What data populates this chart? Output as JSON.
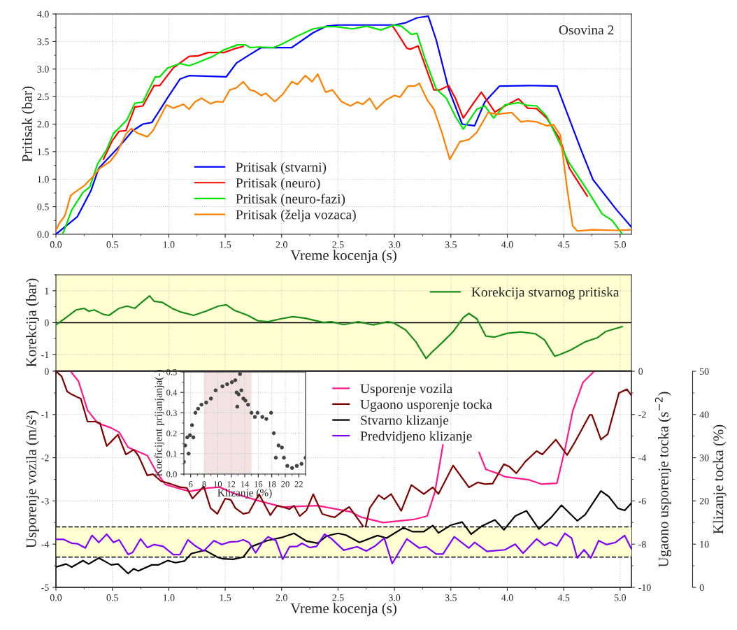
{
  "chart_data": [
    {
      "type": "line",
      "xlabel": "Vreme kocenja (s)",
      "ylabel": "Pritisak (bar)",
      "xlim": [
        0,
        5.1
      ],
      "ylim": [
        0,
        4
      ],
      "xticks": [
        {
          "value": 0,
          "label": "0.0"
        },
        {
          "value": 0.5,
          "label": "0.5"
        },
        {
          "value": 1,
          "label": "1.0"
        },
        {
          "value": 1.5,
          "label": "1.5"
        },
        {
          "value": 2,
          "label": "2.0"
        },
        {
          "value": 2.5,
          "label": "2.5"
        },
        {
          "value": 3,
          "label": "3.0"
        },
        {
          "value": 3.5,
          "label": "3.5"
        },
        {
          "value": 4,
          "label": "4.0"
        },
        {
          "value": 4.5,
          "label": "4.5"
        },
        {
          "value": 5,
          "label": "5.0"
        }
      ],
      "yticks": [
        {
          "value": 0,
          "label": "0.0"
        },
        {
          "value": 0.5,
          "label": "0.5"
        },
        {
          "value": 1,
          "label": "1.0"
        },
        {
          "value": 1.5,
          "label": "1.5"
        },
        {
          "value": 2,
          "label": "2.0"
        },
        {
          "value": 2.5,
          "label": "2.5"
        },
        {
          "value": 3,
          "label": "3.0"
        },
        {
          "value": 3.5,
          "label": "3.5"
        },
        {
          "value": 4,
          "label": "4.0"
        }
      ],
      "grid": true,
      "legend": "bottom",
      "annotations": [
        "Osovina 2"
      ],
      "series": [
        {
          "name": "Pritisak (stvarni)",
          "color": "#0000ff",
          "x": [
            0,
            0.19,
            0.31,
            0.38,
            0.56,
            0.68,
            0.77,
            0.85,
            0.91,
            0.99,
            1.1,
            1.18,
            1.51,
            1.6,
            1.7,
            1.82,
            2.09,
            2.28,
            2.4,
            2.5,
            2.7,
            2.9,
            3.0,
            3.1,
            3.2,
            3.3,
            3.37,
            3.48,
            3.6,
            3.71,
            3.8,
            3.93,
            4.2,
            4.44,
            4.51,
            4.66,
            4.76,
            4.97,
            5.1
          ],
          "values": [
            0,
            0.32,
            0.79,
            1.2,
            1.59,
            1.88,
            2.0,
            2.03,
            2.22,
            2.48,
            2.82,
            2.88,
            2.86,
            3.11,
            3.24,
            3.39,
            3.39,
            3.66,
            3.78,
            3.8,
            3.8,
            3.8,
            3.8,
            3.84,
            3.93,
            3.96,
            3.53,
            2.64,
            2.0,
            1.97,
            2.4,
            2.69,
            2.7,
            2.69,
            2.31,
            1.5,
            0.99,
            0.44,
            0.13
          ]
        },
        {
          "name": "Pritisak (neuro)",
          "color": "#ff0000",
          "x": [
            0.42,
            0.5,
            0.56,
            0.62,
            0.7,
            0.77,
            0.87,
            0.92,
            1.04,
            1.18,
            1.26,
            1.35,
            1.49,
            1.6,
            1.66,
            1.8,
            1.93,
            2.01,
            2.15,
            2.28,
            2.4,
            2.48,
            2.63,
            2.75,
            2.88,
            2.98,
            3.02,
            3.11,
            3.14,
            3.21,
            3.25,
            3.35,
            3.4,
            3.48,
            3.54,
            3.61,
            3.69,
            3.77,
            3.89,
            3.98,
            4.1,
            4.18,
            4.26,
            4.35,
            4.47,
            4.55,
            4.64,
            4.71
          ],
          "values": [
            1.36,
            1.7,
            1.87,
            1.88,
            2.31,
            2.33,
            2.7,
            2.7,
            3.02,
            3.23,
            3.24,
            3.3,
            3.3,
            3.38,
            3.41,
            null,
            null,
            null,
            null,
            null,
            null,
            null,
            null,
            null,
            null,
            3.79,
            3.67,
            3.38,
            3.36,
            3.42,
            3.19,
            2.62,
            2.62,
            2.7,
            2.47,
            2.11,
            2.35,
            2.58,
            2.22,
            2.33,
            2.46,
            2.29,
            2.28,
            2.11,
            1.71,
            1.2,
            0.91,
            0.69
          ]
        },
        {
          "name": "Pritisak (neuro-fazi)",
          "color": "#00e600",
          "x": [
            0.06,
            0.14,
            0.24,
            0.3,
            0.37,
            0.45,
            0.51,
            0.56,
            0.63,
            0.7,
            0.77,
            0.88,
            0.92,
            0.99,
            1.1,
            1.18,
            1.26,
            1.39,
            1.49,
            1.61,
            1.68,
            1.72,
            1.8,
            1.93,
            2.01,
            2.15,
            2.28,
            2.4,
            2.48,
            2.63,
            2.75,
            2.88,
            3.0,
            3.06,
            3.15,
            3.2,
            3.27,
            3.37,
            3.46,
            3.54,
            3.61,
            3.73,
            3.8,
            3.88,
            3.98,
            4.1,
            4.18,
            4.26,
            4.35,
            4.47,
            4.55,
            4.7,
            4.84,
            4.93,
            5.02
          ],
          "values": [
            0,
            0.44,
            0.76,
            0.86,
            1.28,
            1.54,
            1.83,
            1.93,
            2.08,
            2.38,
            2.4,
            2.86,
            2.86,
            3.02,
            3.1,
            3.06,
            3.12,
            3.23,
            3.35,
            3.44,
            3.44,
            3.39,
            3.4,
            3.39,
            3.46,
            3.61,
            3.73,
            3.77,
            3.77,
            3.73,
            3.78,
            3.71,
            3.8,
            3.78,
            3.63,
            3.65,
            3.19,
            2.64,
            2.47,
            2.14,
            1.91,
            2.27,
            2.33,
            2.11,
            2.35,
            2.39,
            2.34,
            2.33,
            2.14,
            1.63,
            1.29,
            0.83,
            0.37,
            0.25,
            0
          ]
        },
        {
          "name": "Pritisak (želja vozaca)",
          "color": "#ff8000",
          "x": [
            0,
            0.03,
            0.08,
            0.13,
            0.16,
            0.25,
            0.33,
            0.39,
            0.48,
            0.54,
            0.62,
            0.67,
            0.72,
            0.81,
            0.86,
            0.98,
            1.04,
            1.13,
            1.18,
            1.23,
            1.29,
            1.37,
            1.42,
            1.48,
            1.54,
            1.6,
            1.66,
            1.72,
            1.76,
            1.82,
            1.86,
            1.94,
            2.01,
            2.09,
            2.14,
            2.21,
            2.27,
            2.32,
            2.39,
            2.45,
            2.53,
            2.61,
            2.67,
            2.72,
            2.78,
            2.84,
            2.92,
            3.0,
            3.05,
            3.12,
            3.18,
            3.22,
            3.29,
            3.35,
            3.42,
            3.49,
            3.58,
            3.66,
            3.73,
            3.83,
            3.91,
            4.04,
            4.12,
            4.18,
            4.26,
            4.35,
            4.41,
            4.47,
            4.53,
            4.58,
            4.62,
            4.76,
            4.97,
            5.1
          ],
          "values": [
            0.07,
            0.2,
            0.34,
            0.7,
            0.75,
            0.88,
            1.05,
            1.2,
            1.32,
            1.48,
            1.82,
            1.92,
            1.84,
            1.77,
            1.88,
            2.35,
            2.29,
            2.36,
            2.27,
            2.4,
            2.47,
            2.37,
            2.41,
            2.4,
            2.62,
            2.66,
            2.77,
            2.62,
            2.6,
            2.52,
            2.56,
            2.41,
            2.54,
            2.77,
            2.72,
            2.88,
            2.77,
            2.91,
            2.58,
            2.62,
            2.41,
            2.33,
            2.4,
            2.36,
            2.47,
            2.27,
            2.43,
            2.52,
            2.49,
            2.69,
            2.69,
            2.74,
            2.44,
            2.27,
            1.85,
            1.36,
            1.68,
            1.72,
            1.85,
            2.21,
            2.18,
            2.21,
            2.04,
            2.06,
            2.04,
            1.97,
            1.99,
            1.8,
            0.83,
            0.15,
            0.06,
            0.08,
            0.07,
            0.08
          ]
        }
      ]
    },
    {
      "type": "line",
      "ylabel": "Korekcija (bar)",
      "xlim": [
        0,
        5.1
      ],
      "ylim": [
        -1.5,
        1.5
      ],
      "tick_labels": "y",
      "xticks": [
        {
          "value": 0,
          "label": null
        },
        {
          "value": 0.5,
          "label": null
        },
        {
          "value": 1,
          "label": null
        },
        {
          "value": 1.5,
          "label": null
        },
        {
          "value": 2,
          "label": null
        },
        {
          "value": 2.5,
          "label": null
        },
        {
          "value": 3,
          "label": null
        },
        {
          "value": 3.5,
          "label": null
        },
        {
          "value": 4,
          "label": null
        },
        {
          "value": 4.5,
          "label": null
        },
        {
          "value": 5,
          "label": null
        }
      ],
      "yticks": [
        -1,
        0,
        1
      ],
      "grid": true,
      "legend": "top right",
      "bands": [
        {
          "axis": "y",
          "from": -1.5,
          "to": 1.5,
          "color": "#ffffd2"
        }
      ],
      "ref_lines": [
        {
          "axis": "y",
          "value": 0,
          "color": "#000000",
          "line_style": "solid"
        }
      ],
      "series": [
        {
          "name": "Korekcija stvarnog pritiska",
          "color": "#1a8c1a",
          "x": [
            0,
            0.09,
            0.18,
            0.25,
            0.29,
            0.34,
            0.42,
            0.47,
            0.56,
            0.63,
            0.7,
            0.76,
            0.83,
            0.87,
            0.94,
            1.04,
            1.11,
            1.22,
            1.33,
            1.44,
            1.51,
            1.58,
            1.7,
            1.79,
            1.88,
            1.99,
            2.1,
            2.21,
            2.37,
            2.44,
            2.55,
            2.68,
            2.81,
            2.94,
            2.99,
            3.1,
            3.19,
            3.28,
            3.33,
            3.43,
            3.52,
            3.61,
            3.66,
            3.73,
            3.81,
            3.89,
            4.0,
            4.12,
            4.25,
            4.33,
            4.42,
            4.47,
            4.56,
            4.69,
            4.8,
            4.87,
            5.02
          ],
          "values": [
            -0.07,
            0.16,
            0.4,
            0.45,
            0.36,
            0.4,
            0.26,
            0.23,
            0.45,
            0.52,
            0.45,
            0.64,
            0.84,
            0.67,
            0.64,
            0.43,
            0.33,
            0.23,
            0.36,
            0.52,
            0.56,
            0.39,
            0.23,
            0.06,
            0.03,
            0.12,
            0.19,
            0.14,
            0.01,
            0.03,
            -0.06,
            0.03,
            -0.07,
            0.03,
            0,
            -0.23,
            -0.6,
            -1.12,
            -0.93,
            -0.6,
            -0.28,
            0.16,
            0.29,
            0.12,
            -0.42,
            -0.45,
            -0.33,
            -0.29,
            -0.35,
            -0.54,
            -1.05,
            -0.99,
            -0.86,
            -0.6,
            -0.47,
            -0.28,
            -0.12
          ]
        }
      ]
    },
    {
      "type": "line",
      "xlabel": "Vreme kocenja (s)",
      "ylabel": "Usporenje vozila (m/s²)",
      "y2label": "Ugaono usporenje tocka (s$^{−2}$)",
      "y3label": "Klizanje tocka (%)",
      "xlim": [
        0,
        5.1
      ],
      "ylim": [
        -5,
        0
      ],
      "y2lim": [
        -10,
        0
      ],
      "y3lim": [
        0,
        50
      ],
      "xticks": [
        {
          "value": 0,
          "label": "0.0"
        },
        {
          "value": 0.5,
          "label": "0.5"
        },
        {
          "value": 1,
          "label": "1.0"
        },
        {
          "value": 1.5,
          "label": "1.5"
        },
        {
          "value": 2,
          "label": "2.0"
        },
        {
          "value": 2.5,
          "label": "2.5"
        },
        {
          "value": 3,
          "label": "3.0"
        },
        {
          "value": 3.5,
          "label": "3.5"
        },
        {
          "value": 4,
          "label": "4.0"
        },
        {
          "value": 4.5,
          "label": "4.5"
        },
        {
          "value": 5,
          "label": "5.0"
        }
      ],
      "yticks": [
        -5,
        -4,
        -3,
        -2,
        -1,
        0
      ],
      "y2ticks": [
        -10,
        -8,
        -6,
        -4,
        -2,
        0
      ],
      "y3ticks": [
        0,
        10,
        20,
        30,
        40,
        50
      ],
      "grid": true,
      "legend": "top",
      "bands": [
        {
          "axis": "y3",
          "from": 7,
          "to": 14,
          "color": "#ffffd2"
        }
      ],
      "ref_lines": [
        {
          "axis": "y3",
          "value": 7,
          "color": "#000000",
          "line_style": "dashed"
        },
        {
          "axis": "y3",
          "value": 14,
          "color": "#000000",
          "line_style": "dashed"
        }
      ],
      "series": [
        {
          "name": "Usporenje vozila",
          "color": "#ff1a8c",
          "axis": "y",
          "x": [
            0,
            0.13,
            0.2,
            0.28,
            0.37,
            0.48,
            0.56,
            0.64,
            0.81,
            0.89,
            0.97,
            1.18,
            1.35,
            1.45,
            1.57,
            1.8,
            2.01,
            2.32,
            2.61,
            2.71,
            2.9,
            3.17,
            3.29,
            3.36,
            3.43,
            3.6,
            3.75,
            3.81,
            3.91,
            3.98,
            4.19,
            4.3,
            4.44,
            4.51,
            4.58,
            4.67,
            4.77
          ],
          "values": [
            0,
            0,
            -0.23,
            -0.9,
            -1.2,
            -1.3,
            -1.41,
            -1.76,
            -1.95,
            -2.33,
            -2.62,
            -2.78,
            -2.7,
            -2.68,
            -2.82,
            -3.0,
            -3.14,
            -3.11,
            -3.25,
            -3.38,
            -3.5,
            -3.43,
            -3.35,
            -2.78,
            -1.7,
            null,
            -1.88,
            -2.27,
            -2.36,
            -2.44,
            -2.51,
            -2.61,
            -2.59,
            -1.82,
            -0.92,
            -0.26,
            0
          ]
        },
        {
          "name": "Ugaono usporenje tocka",
          "color": "#800000",
          "axis": "y2",
          "x": [
            0,
            0.05,
            0.1,
            0.13,
            0.19,
            0.22,
            0.28,
            0.35,
            0.39,
            0.45,
            0.5,
            0.55,
            0.62,
            0.69,
            0.73,
            0.81,
            0.86,
            0.93,
            1.01,
            1.1,
            1.16,
            1.21,
            1.31,
            1.37,
            1.43,
            1.5,
            1.55,
            1.59,
            1.66,
            1.71,
            1.8,
            1.9,
            1.96,
            2.01,
            2.07,
            2.11,
            2.16,
            2.22,
            2.28,
            2.36,
            2.42,
            2.47,
            2.55,
            2.6,
            2.74,
            2.78,
            2.86,
            2.91,
            2.97,
            3.06,
            3.15,
            3.26,
            3.34,
            3.39,
            3.52,
            3.66,
            3.74,
            3.8,
            3.87,
            3.97,
            4.02,
            4.08,
            4.16,
            4.26,
            4.31,
            4.43,
            4.53,
            4.6,
            4.73,
            4.75,
            4.83,
            4.89,
            4.99,
            5.06,
            5.1
          ],
          "values": [
            0,
            -0.23,
            -0.94,
            -1.04,
            -1.2,
            -1.26,
            -2.33,
            -2.33,
            -2.4,
            -3.46,
            -3.2,
            -2.93,
            -3.85,
            -3.63,
            -3.9,
            -4.82,
            -4.76,
            -5.08,
            -5.2,
            -5.36,
            -5.4,
            -5.89,
            -5.33,
            -6.33,
            -6.6,
            -5.89,
            -5.95,
            -6.33,
            -6.6,
            -6.54,
            -5.69,
            -6.66,
            -6.22,
            -6.28,
            -6.38,
            -6.22,
            -6.7,
            -6.44,
            -5.69,
            -6.6,
            -6.7,
            -6.76,
            -6.44,
            -6.28,
            -7.3,
            -6.34,
            -5.73,
            -5.92,
            -5.68,
            -6.46,
            -5.26,
            -5.68,
            -5.37,
            -5.68,
            -4.36,
            -5.37,
            -5.14,
            -5.22,
            -5.2,
            -4.3,
            -4.42,
            -4.72,
            -4.18,
            -3.69,
            -3.85,
            -3.16,
            -3.88,
            -3.27,
            -2.02,
            -2.02,
            -3.16,
            -2.91,
            -1.0,
            -0.83,
            -1.12
          ]
        },
        {
          "name": "Stvarno klizanje",
          "color": "#000000",
          "axis": "y3",
          "x": [
            0,
            0.09,
            0.14,
            0.24,
            0.29,
            0.38,
            0.49,
            0.55,
            0.64,
            0.69,
            0.73,
            0.85,
            0.91,
            0.99,
            1.06,
            1.14,
            1.2,
            1.32,
            1.43,
            1.48,
            1.57,
            1.66,
            1.73,
            1.87,
            2.01,
            2.11,
            2.22,
            2.32,
            2.4,
            2.5,
            2.57,
            2.69,
            2.85,
            2.93,
            3.08,
            3.16,
            3.26,
            3.34,
            3.39,
            3.5,
            3.6,
            3.68,
            3.77,
            3.89,
            3.97,
            4.07,
            4.17,
            4.28,
            4.39,
            4.48,
            4.62,
            4.69,
            4.83,
            4.9,
            4.98,
            5.04,
            5.1
          ],
          "values": [
            4.7,
            5.4,
            4.7,
            6.2,
            5.4,
            6.8,
            5.2,
            5.4,
            3.2,
            4.3,
            3.8,
            5.2,
            5.2,
            6.2,
            5.7,
            6.1,
            7.8,
            8.6,
            7.0,
            6.6,
            6.5,
            7.0,
            9.4,
            10.8,
            11.6,
            12.5,
            10.7,
            10.2,
            11.9,
            12.5,
            12.1,
            10.4,
            12.0,
            11.4,
            13.8,
            12.9,
            12.9,
            14.3,
            12.6,
            14.4,
            15.1,
            12.3,
            14.1,
            15.6,
            13.3,
            16.5,
            17.7,
            13.5,
            16.2,
            19.0,
            15.4,
            16.8,
            22.3,
            21.0,
            18.3,
            17.8,
            19.5
          ]
        },
        {
          "name": "Predvidjeno klizanje",
          "color": "#8000ff",
          "axis": "y3",
          "x": [
            0,
            0.07,
            0.14,
            0.19,
            0.26,
            0.32,
            0.38,
            0.45,
            0.51,
            0.56,
            0.64,
            0.68,
            0.75,
            0.81,
            0.87,
            0.95,
            1.04,
            1.1,
            1.17,
            1.24,
            1.31,
            1.4,
            1.47,
            1.54,
            1.61,
            1.66,
            1.71,
            1.77,
            1.83,
            1.88,
            1.95,
            2.01,
            2.07,
            2.14,
            2.18,
            2.25,
            2.31,
            2.38,
            2.44,
            2.55,
            2.67,
            2.75,
            2.83,
            2.91,
            2.98,
            3.11,
            3.22,
            3.28,
            3.37,
            3.43,
            3.53,
            3.66,
            3.71,
            3.82,
            3.98,
            4.07,
            4.14,
            4.26,
            4.33,
            4.38,
            4.44,
            4.51,
            4.57,
            4.62,
            4.68,
            4.74,
            4.81,
            4.88,
            4.96,
            5.04,
            5.1
          ],
          "values": [
            11.1,
            11.1,
            10.2,
            10.1,
            9.1,
            12.0,
            10.4,
            12.3,
            10.4,
            11.0,
            7.6,
            8.1,
            11.2,
            9.2,
            9.9,
            9.5,
            7.6,
            7.6,
            11.0,
            9.5,
            8.4,
            10.8,
            9.9,
            10.5,
            10.6,
            11.0,
            10.4,
            8.0,
            10.4,
            11.7,
            10.8,
            6.5,
            9.4,
            9.5,
            10.2,
            9.2,
            9.5,
            12.3,
            11.3,
            8.6,
            9.4,
            8.4,
            9.6,
            11.4,
            5.5,
            11.2,
            9.1,
            9.4,
            7.7,
            7.7,
            11.7,
            9.1,
            10.4,
            8.3,
            8.7,
            10.0,
            7.9,
            11.2,
            9.7,
            10.4,
            9.6,
            12.5,
            11.4,
            6.8,
            8.7,
            6.8,
            10.8,
            9.9,
            10.4,
            12.0,
            8.9
          ]
        }
      ]
    },
    {
      "type": "scatter",
      "xlabel": "Klizanje (%)",
      "ylabel": "Koeficijent prijanjanja(-)",
      "xlim": [
        5,
        23
      ],
      "ylim": [
        0,
        0.5
      ],
      "xticks": [
        6,
        8,
        10,
        12,
        14,
        16,
        18,
        20,
        22
      ],
      "yticks": [
        {
          "value": 0,
          "label": "0.0"
        },
        {
          "value": 0.1,
          "label": "0.1"
        },
        {
          "value": 0.2,
          "label": "0.2"
        },
        {
          "value": 0.3,
          "label": "0.3"
        },
        {
          "value": 0.4,
          "label": "0.4"
        },
        {
          "value": 0.5,
          "label": "0.5"
        }
      ],
      "grid": true,
      "marker": "circle",
      "bands": [
        {
          "axis": "x",
          "from": 8,
          "to": 15,
          "color": "#f2e2e2"
        }
      ],
      "series": [
        {
          "color": "#444444",
          "x": [
            5.0,
            5.2,
            5.5,
            5.7,
            5.9,
            6.2,
            6.4,
            6.7,
            7.1,
            7.6,
            8.3,
            9.0,
            9.7,
            10.7,
            11.4,
            12.1,
            12.6,
            12.8,
            12.9,
            13.1,
            13.3,
            13.5,
            13.8,
            14.1,
            14.5,
            15.0,
            15.5,
            15.9,
            16.6,
            17.2,
            17.9,
            18.3,
            18.6,
            19.0,
            19.5,
            19.8,
            20.3,
            21.0,
            21.7,
            22.4,
            23.0
          ],
          "values": [
            0.06,
            0.14,
            0.18,
            0.1,
            0.19,
            0.24,
            0.18,
            0.3,
            0.32,
            0.34,
            0.35,
            0.37,
            0.41,
            0.43,
            0.44,
            0.45,
            0.46,
            0.4,
            0.33,
            0.39,
            0.49,
            0.41,
            0.37,
            0.36,
            0.34,
            0.3,
            0.28,
            0.3,
            0.28,
            0.27,
            0.3,
            0.2,
            0.08,
            0.14,
            0.13,
            0.08,
            0.04,
            0.03,
            0.04,
            0.05,
            0.08
          ]
        }
      ]
    }
  ]
}
